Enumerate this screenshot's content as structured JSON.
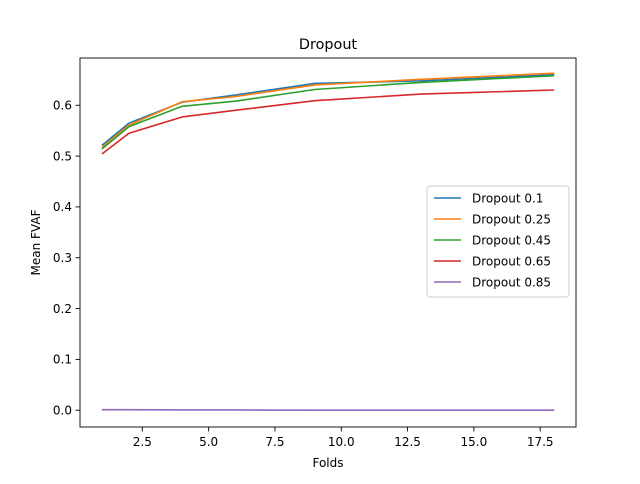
{
  "chart_data": {
    "type": "line",
    "title": "Dropout",
    "xlabel": "Folds",
    "ylabel": "Mean FVAF",
    "xlim": [
      0.15,
      18.85
    ],
    "ylim": [
      -0.033,
      0.693
    ],
    "xticks": [
      2.5,
      5.0,
      7.5,
      10.0,
      12.5,
      15.0,
      17.5
    ],
    "xtick_labels": [
      "2.5",
      "5.0",
      "7.5",
      "10.0",
      "12.5",
      "15.0",
      "17.5"
    ],
    "yticks": [
      0.0,
      0.1,
      0.2,
      0.3,
      0.4,
      0.5,
      0.6
    ],
    "ytick_labels": [
      "0.0",
      "0.1",
      "0.2",
      "0.3",
      "0.4",
      "0.5",
      "0.6"
    ],
    "grid": false,
    "legend_position": "center-right",
    "x": [
      1,
      2,
      4,
      6,
      9,
      13,
      18
    ],
    "series": [
      {
        "name": "Dropout 0.1",
        "color": "#1f77b4",
        "values": [
          0.522,
          0.565,
          0.606,
          0.62,
          0.643,
          0.648,
          0.66
        ]
      },
      {
        "name": "Dropout 0.25",
        "color": "#ff7f0e",
        "values": [
          0.518,
          0.561,
          0.607,
          0.617,
          0.64,
          0.651,
          0.663
        ]
      },
      {
        "name": "Dropout 0.45",
        "color": "#2ca02c",
        "values": [
          0.515,
          0.558,
          0.598,
          0.608,
          0.631,
          0.645,
          0.658
        ]
      },
      {
        "name": "Dropout 0.65",
        "color": "#d62728",
        "values": [
          0.505,
          0.545,
          0.577,
          0.59,
          0.609,
          0.622,
          0.63
        ]
      },
      {
        "name": "Dropout 0.85",
        "color": "#9467bd",
        "values": [
          0.001,
          0.001,
          0.0005,
          0.0005,
          0.0,
          0.0,
          0.0
        ]
      }
    ]
  }
}
